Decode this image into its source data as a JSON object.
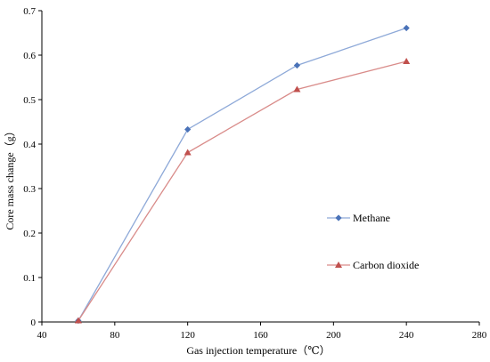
{
  "chart_data": {
    "type": "line",
    "xlabel": "Gas injection temperature（℃）",
    "ylabel": "Core mass change（g）",
    "xlim": [
      40,
      280
    ],
    "ylim": [
      0,
      0.7
    ],
    "x_ticks": [
      "40",
      "80",
      "120",
      "160",
      "200",
      "240",
      "280"
    ],
    "y_ticks": [
      "0",
      "0.1",
      "0.2",
      "0.3",
      "0.4",
      "0.5",
      "0.6",
      "0.7"
    ],
    "grid": false,
    "legend_placement": "right",
    "series": [
      {
        "name": "Methane",
        "color": "#8EA9D8",
        "marker_color": "#4A72B8",
        "marker": "diamond",
        "x": [
          60,
          120,
          180,
          240
        ],
        "y": [
          0.003,
          0.433,
          0.577,
          0.661
        ]
      },
      {
        "name": "Carbon dioxide",
        "color": "#D98C8A",
        "marker_color": "#C0504D",
        "marker": "triangle",
        "x": [
          60,
          120,
          180,
          240
        ],
        "y": [
          0.003,
          0.381,
          0.523,
          0.586
        ]
      }
    ]
  }
}
